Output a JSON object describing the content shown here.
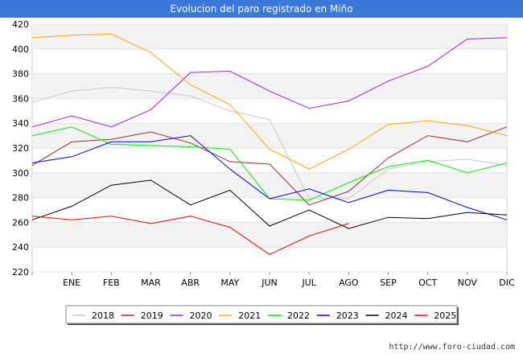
{
  "page": {
    "title": "Evolucion del paro registrado en Miño",
    "footer_url": "http://www.foro-ciudad.com"
  },
  "chart_data": {
    "type": "line",
    "title": "Evolucion del paro registrado en Miño",
    "xlabel": "",
    "ylabel": "",
    "x_ticks": [
      "",
      "ENE",
      "FEB",
      "MAR",
      "ABR",
      "MAY",
      "JUN",
      "JUL",
      "AGO",
      "SEP",
      "OCT",
      "NOV",
      "DIC"
    ],
    "y_ticks": [
      220,
      240,
      260,
      280,
      300,
      320,
      340,
      360,
      380,
      400,
      420
    ],
    "ylim": [
      220,
      420
    ],
    "grid": "horizontal bands",
    "legend": "bottom-center",
    "x_points": 13,
    "series": [
      {
        "name": "2018",
        "color": "#c8c8c8",
        "values": [
          357,
          366,
          369,
          366,
          362,
          350,
          343,
          279,
          279,
          303,
          309,
          311,
          306
        ]
      },
      {
        "name": "2019",
        "color": "#a52a2a",
        "values": [
          306,
          325,
          327,
          333,
          324,
          309,
          307,
          274,
          285,
          312,
          330,
          325,
          337
        ]
      },
      {
        "name": "2020",
        "color": "#a020f0",
        "values": [
          337,
          346,
          337,
          351,
          381,
          382,
          366,
          352,
          358,
          374,
          386,
          408,
          409
        ]
      },
      {
        "name": "2021",
        "color": "#ffa500",
        "values": [
          409,
          411,
          412,
          397,
          371,
          355,
          319,
          303,
          319,
          339,
          342,
          338,
          330
        ]
      },
      {
        "name": "2022",
        "color": "#00ee00",
        "values": [
          330,
          337,
          323,
          322,
          321,
          319,
          279,
          278,
          292,
          305,
          310,
          300,
          308
        ]
      },
      {
        "name": "2023",
        "color": "#0000ee",
        "values": [
          308,
          313,
          325,
          325,
          330,
          303,
          279,
          287,
          276,
          286,
          284,
          272,
          262
        ]
      },
      {
        "name": "2024",
        "color": "#000000",
        "values": [
          262,
          273,
          290,
          294,
          274,
          286,
          257,
          270,
          255,
          264,
          263,
          268,
          266
        ]
      },
      {
        "name": "2025",
        "color": "#ff0000",
        "values": [
          265,
          262,
          265,
          259,
          265,
          256,
          234,
          249,
          259,
          null,
          null,
          null,
          null
        ]
      }
    ]
  }
}
